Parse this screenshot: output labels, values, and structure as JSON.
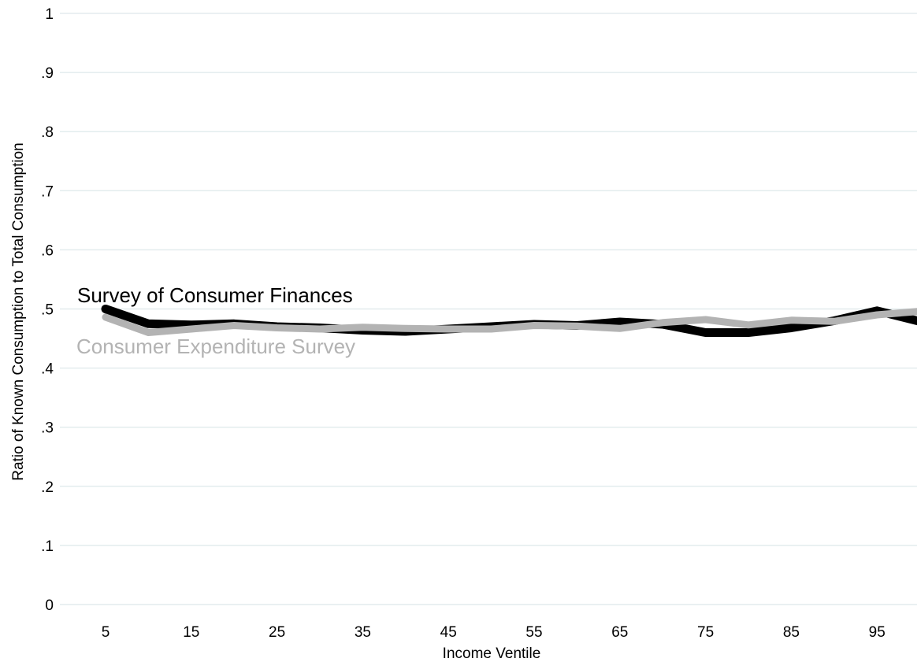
{
  "chart_data": {
    "type": "line",
    "xlabel": "Income Ventile",
    "ylabel": "Ratio of Known Consumption to Total Consumption",
    "xlim": [
      0,
      100
    ],
    "ylim": [
      0,
      1
    ],
    "xticks": [
      5,
      15,
      25,
      35,
      45,
      55,
      65,
      75,
      85,
      95
    ],
    "xtick_labels": [
      "5",
      "15",
      "25",
      "35",
      "45",
      "55",
      "65",
      "75",
      "85",
      "95"
    ],
    "yticks": [
      0,
      0.1,
      0.2,
      0.3,
      0.4,
      0.5,
      0.6,
      0.7,
      0.8,
      0.9,
      1
    ],
    "ytick_labels": [
      "0",
      ".1",
      ".2",
      ".3",
      ".4",
      ".5",
      ".6",
      ".7",
      ".8",
      ".9",
      "1"
    ],
    "grid": "horizontal",
    "legend": "none",
    "x": [
      5,
      10,
      15,
      20,
      25,
      30,
      35,
      40,
      45,
      50,
      55,
      60,
      65,
      70,
      75,
      80,
      85,
      90,
      95,
      100
    ],
    "series": [
      {
        "name": "Survey of Consumer Finances",
        "color": "#000000",
        "values": [
          0.5,
          0.475,
          0.473,
          0.475,
          0.47,
          0.468,
          0.464,
          0.462,
          0.466,
          0.47,
          0.474,
          0.472,
          0.478,
          0.474,
          0.46,
          0.46,
          0.468,
          0.48,
          0.497,
          0.479
        ]
      },
      {
        "name": "Consumer Expenditure Survey",
        "color": "#b3b3b3",
        "values": [
          0.486,
          0.46,
          0.466,
          0.472,
          0.468,
          0.466,
          0.469,
          0.467,
          0.466,
          0.466,
          0.472,
          0.471,
          0.467,
          0.477,
          0.482,
          0.473,
          0.481,
          0.479,
          0.49,
          0.496
        ]
      }
    ],
    "annotations": [
      {
        "text": "Survey of Consumer Finances",
        "color": "#000000"
      },
      {
        "text": "Consumer Expenditure Survey",
        "color": "#b3b3b3"
      }
    ]
  }
}
